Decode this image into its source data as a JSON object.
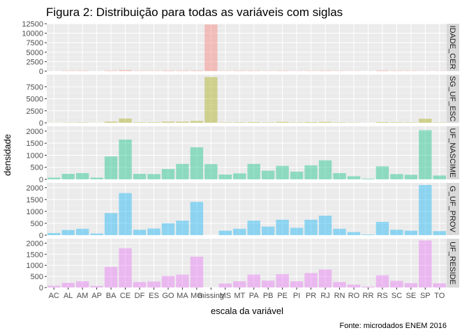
{
  "chart_data": {
    "type": "bar",
    "title": "Figura 2: Distribuição para todas as variáveis com siglas",
    "xlabel": "escala da variável",
    "ylabel": "densidade",
    "caption": "Fonte: microdados ENEM 2016",
    "categories": [
      "AC",
      "AL",
      "AM",
      "AP",
      "BA",
      "CE",
      "DF",
      "ES",
      "GO",
      "MA",
      "MG",
      "missing",
      "MS",
      "MT",
      "PA",
      "PB",
      "PE",
      "PI",
      "PR",
      "RJ",
      "RN",
      "RO",
      "RR",
      "RS",
      "SC",
      "SE",
      "SP",
      "TO"
    ],
    "x_tick_labels": [
      "AC",
      "AL",
      "AM",
      "AP",
      "BA",
      "CE",
      "DF",
      "ES",
      "GO",
      "MA",
      "MG",
      "missing",
      "MS",
      "MT",
      "PA",
      "PB",
      "PE",
      "PI",
      "PR",
      "RJ",
      "RN",
      "RO",
      "RR",
      "RS",
      "SC",
      "SE",
      "SP",
      "TO"
    ],
    "grid": true,
    "panels": [
      {
        "strip": "IDADE_CER",
        "color": "#F8766D",
        "ylim": [
          0,
          12500
        ],
        "yticks": [
          0,
          2500,
          5000,
          7500,
          10000,
          12500
        ],
        "values": [
          20,
          100,
          110,
          20,
          150,
          280,
          90,
          90,
          150,
          150,
          160,
          12300,
          80,
          120,
          110,
          70,
          110,
          70,
          90,
          130,
          70,
          60,
          20,
          180,
          110,
          90,
          60,
          60
        ]
      },
      {
        "strip": "SG_UF_ESC",
        "color": "#A3A500",
        "ylim": [
          0,
          10000
        ],
        "yticks": [
          0,
          2500,
          5000,
          7500
        ],
        "values": [
          30,
          60,
          80,
          30,
          250,
          900,
          120,
          120,
          250,
          250,
          400,
          9500,
          100,
          120,
          150,
          100,
          200,
          100,
          150,
          200,
          100,
          60,
          20,
          150,
          120,
          100,
          850,
          80
        ]
      },
      {
        "strip": "UF_NASCIME",
        "color": "#00BF7D",
        "ylim": [
          0,
          2200
        ],
        "yticks": [
          0,
          500,
          1000,
          1500,
          2000
        ],
        "values": [
          70,
          230,
          260,
          70,
          950,
          1650,
          230,
          220,
          430,
          640,
          1330,
          630,
          200,
          250,
          640,
          360,
          560,
          320,
          580,
          790,
          260,
          130,
          30,
          540,
          220,
          190,
          2040,
          160
        ]
      },
      {
        "strip": "G_UF_PROV",
        "color": "#00B0F6",
        "ylim": [
          0,
          2200
        ],
        "yticks": [
          0,
          500,
          1000,
          1500,
          2000
        ],
        "values": [
          90,
          220,
          270,
          70,
          930,
          1770,
          230,
          280,
          500,
          610,
          1400,
          0,
          190,
          270,
          610,
          360,
          650,
          310,
          650,
          820,
          270,
          130,
          30,
          560,
          230,
          190,
          2110,
          170
        ]
      },
      {
        "strip": "UF_RESIDE",
        "color": "#E76BF3",
        "ylim": [
          0,
          2200
        ],
        "yticks": [
          0,
          500,
          1000,
          1500,
          2000
        ],
        "values": [
          80,
          210,
          280,
          70,
          930,
          1770,
          250,
          270,
          520,
          580,
          1390,
          0,
          180,
          280,
          580,
          310,
          600,
          280,
          650,
          810,
          250,
          130,
          40,
          550,
          300,
          200,
          2120,
          190
        ]
      }
    ]
  }
}
